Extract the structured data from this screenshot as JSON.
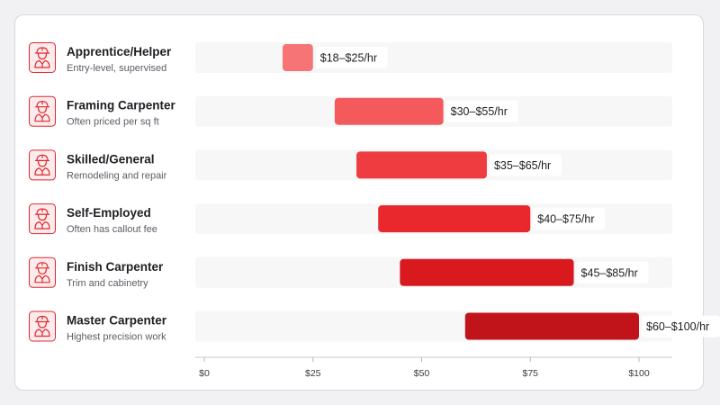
{
  "chart_data": {
    "type": "bar",
    "subtype": "range-bar-horizontal",
    "colors": {
      "icon_stroke": "#e2272b",
      "icon_bg": "#fdeced",
      "track": "#f7f7f8",
      "label_bg": "#ffffff"
    },
    "categories": [
      {
        "title": "Apprentice/Helper",
        "subtitle": "Entry-level, supervised",
        "low": 18,
        "high": 25,
        "label": "$18–$25/hr",
        "color": "#f77476"
      },
      {
        "title": "Framing Carpenter",
        "subtitle": "Often priced per sq ft",
        "low": 30,
        "high": 55,
        "label": "$30–$55/hr",
        "color": "#f4595c"
      },
      {
        "title": "Skilled/General",
        "subtitle": "Remodeling and repair",
        "low": 35,
        "high": 65,
        "label": "$35–$65/hr",
        "color": "#ef3c40"
      },
      {
        "title": "Self-Employed",
        "subtitle": "Often has callout fee",
        "low": 40,
        "high": 75,
        "label": "$40–$75/hr",
        "color": "#e8282c"
      },
      {
        "title": "Finish Carpenter",
        "subtitle": "Trim and cabinetry",
        "low": 45,
        "high": 85,
        "label": "$45–$85/hr",
        "color": "#d81a1f"
      },
      {
        "title": "Master Carpenter",
        "subtitle": "Highest precision work",
        "low": 60,
        "high": 100,
        "label": "$60–$100/hr",
        "color": "#c0141a"
      }
    ],
    "xaxis": {
      "range": [
        0,
        100
      ],
      "ticks": [
        0,
        25,
        50,
        75,
        100
      ],
      "tick_labels": [
        "$0",
        "$25",
        "$50",
        "$75",
        "$100"
      ]
    }
  }
}
